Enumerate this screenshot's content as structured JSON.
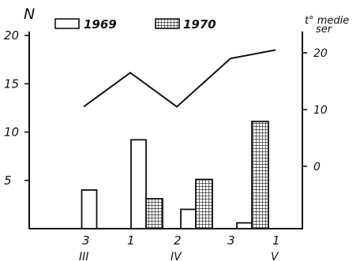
{
  "chart_data": {
    "type": "bar",
    "ylabel_left": "N",
    "ylabel_right": "t° medie ser",
    "left_ticks": [
      "20",
      "15",
      "10",
      "5"
    ],
    "left_ylim": [
      0,
      20
    ],
    "right_ticks": [
      "20",
      "10",
      "0"
    ],
    "right_ylim": [
      -11,
      20
    ],
    "legend": [
      {
        "name": "1969",
        "pattern": "empty"
      },
      {
        "name": "1970",
        "pattern": "grid"
      }
    ],
    "x_ticks": [
      "3",
      "1",
      "2",
      "3",
      "1"
    ],
    "month_labels": [
      "III",
      "IV",
      "V"
    ],
    "series": [
      {
        "name": "1969",
        "values": [
          4,
          9.2,
          2,
          0.6
        ]
      },
      {
        "name": "1970",
        "values": [
          null,
          3.1,
          5.1,
          11.1
        ]
      }
    ],
    "temperature": {
      "x_index": [
        0,
        1,
        2,
        3,
        4
      ],
      "values": [
        10.5,
        16.5,
        10.5,
        19,
        20.5
      ]
    },
    "colors": {
      "ink": "#111111",
      "paper": "#ffffff"
    }
  }
}
